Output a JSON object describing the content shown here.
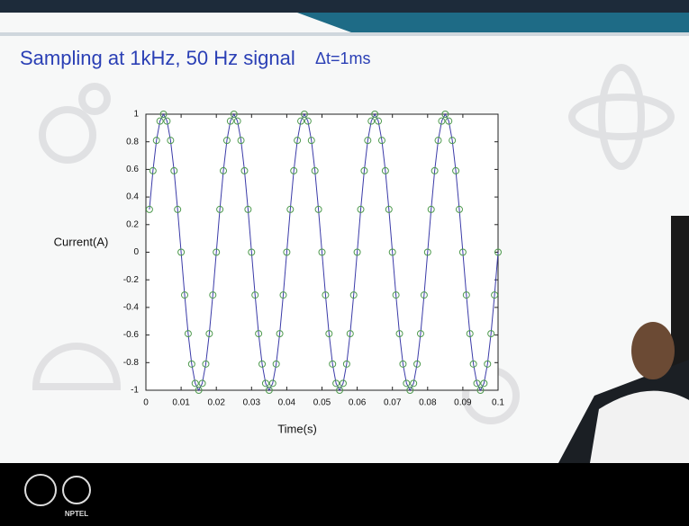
{
  "title": "Sampling at 1kHz, 50 Hz signal",
  "note": "Δt=1ms",
  "logo_text": "NPTEL",
  "chart_data": {
    "type": "line",
    "xlabel": "Time(s)",
    "ylabel": "Current(A)",
    "line_color": "#3b3ba8",
    "marker_color": "#4e9a4e",
    "xlim": [
      0,
      0.1
    ],
    "ylim": [
      -1,
      1
    ],
    "xticks": [
      0,
      0.01,
      0.02,
      0.03,
      0.04,
      0.05,
      0.06,
      0.07,
      0.08,
      0.09,
      0.1
    ],
    "yticks": [
      -1,
      -0.8,
      -0.6,
      -0.4,
      -0.2,
      0,
      0.2,
      0.4,
      0.6,
      0.8,
      1
    ],
    "x": [
      0.001,
      0.002,
      0.003,
      0.004,
      0.005,
      0.006,
      0.007,
      0.008,
      0.009,
      0.01,
      0.011,
      0.012,
      0.013,
      0.014,
      0.015,
      0.016,
      0.017,
      0.018,
      0.019,
      0.02,
      0.021,
      0.022,
      0.023,
      0.024,
      0.025,
      0.026,
      0.027,
      0.028,
      0.029,
      0.03,
      0.031,
      0.032,
      0.033,
      0.034,
      0.035,
      0.036,
      0.037,
      0.038,
      0.039,
      0.04,
      0.041,
      0.042,
      0.043,
      0.044,
      0.045,
      0.046,
      0.047,
      0.048,
      0.049,
      0.05,
      0.051,
      0.052,
      0.053,
      0.054,
      0.055,
      0.056,
      0.057,
      0.058,
      0.059,
      0.06,
      0.061,
      0.062,
      0.063,
      0.064,
      0.065,
      0.066,
      0.067,
      0.068,
      0.069,
      0.07,
      0.071,
      0.072,
      0.073,
      0.074,
      0.075,
      0.076,
      0.077,
      0.078,
      0.079,
      0.08,
      0.081,
      0.082,
      0.083,
      0.084,
      0.085,
      0.086,
      0.087,
      0.088,
      0.089,
      0.09,
      0.091,
      0.092,
      0.093,
      0.094,
      0.095,
      0.096,
      0.097,
      0.098,
      0.099,
      0.1
    ],
    "values": [
      0.31,
      0.59,
      0.81,
      0.95,
      1,
      0.95,
      0.81,
      0.59,
      0.31,
      0,
      -0.31,
      -0.59,
      -0.81,
      -0.95,
      -1,
      -0.95,
      -0.81,
      -0.59,
      -0.31,
      0,
      0.31,
      0.59,
      0.81,
      0.95,
      1,
      0.95,
      0.81,
      0.59,
      0.31,
      0,
      -0.31,
      -0.59,
      -0.81,
      -0.95,
      -1,
      -0.95,
      -0.81,
      -0.59,
      -0.31,
      0,
      0.31,
      0.59,
      0.81,
      0.95,
      1,
      0.95,
      0.81,
      0.59,
      0.31,
      0,
      -0.31,
      -0.59,
      -0.81,
      -0.95,
      -1,
      -0.95,
      -0.81,
      -0.59,
      -0.31,
      0,
      0.31,
      0.59,
      0.81,
      0.95,
      1,
      0.95,
      0.81,
      0.59,
      0.31,
      0,
      -0.31,
      -0.59,
      -0.81,
      -0.95,
      -1,
      -0.95,
      -0.81,
      -0.59,
      -0.31,
      0,
      0.31,
      0.59,
      0.81,
      0.95,
      1,
      0.95,
      0.81,
      0.59,
      0.31,
      0,
      -0.31,
      -0.59,
      -0.81,
      -0.95,
      -1,
      -0.95,
      -0.81,
      -0.59,
      -0.31,
      0
    ]
  }
}
